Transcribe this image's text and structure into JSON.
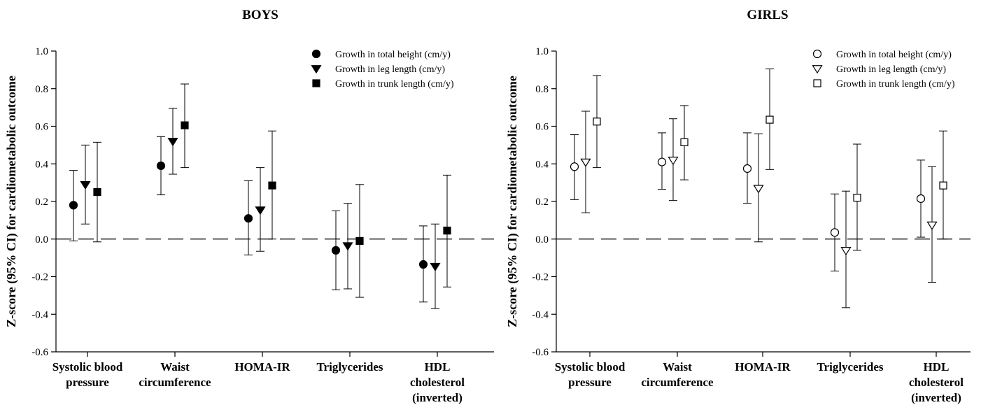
{
  "chart_data": [
    {
      "type": "scatter",
      "title": "BOYS",
      "ylabel": "Z-score (95% CI) for cardiometabolic outcome",
      "ylim": [
        -0.6,
        1.0
      ],
      "yticks": [
        "-0.6",
        "-0.4",
        "-0.2",
        "0.0",
        "0.2",
        "0.4",
        "0.6",
        "0.8",
        "1.0"
      ],
      "reference_line": 0.0,
      "legend_position": "top-right",
      "categories": [
        [
          "Systolic blood",
          "pressure"
        ],
        [
          "Waist",
          "circumference"
        ],
        [
          "HOMA-IR"
        ],
        [
          "Triglycerides"
        ],
        [
          "HDL",
          "cholesterol",
          "(inverted)"
        ]
      ],
      "series": [
        {
          "name": "Growth in total height (cm/y)",
          "marker": "circle",
          "filled": true,
          "values": [
            0.18,
            0.39,
            0.11,
            -0.06,
            -0.135
          ],
          "ci_low": [
            -0.01,
            0.235,
            -0.085,
            -0.27,
            -0.335
          ],
          "ci_high": [
            0.365,
            0.545,
            0.31,
            0.15,
            0.07
          ]
        },
        {
          "name": "Growth in leg length (cm/y)",
          "marker": "triangle-down",
          "filled": true,
          "values": [
            0.29,
            0.52,
            0.155,
            -0.035,
            -0.145
          ],
          "ci_low": [
            0.08,
            0.345,
            -0.065,
            -0.265,
            -0.37
          ],
          "ci_high": [
            0.5,
            0.695,
            0.38,
            0.19,
            0.08
          ]
        },
        {
          "name": "Growth in trunk length (cm/y)",
          "marker": "square",
          "filled": true,
          "values": [
            0.25,
            0.605,
            0.285,
            -0.01,
            0.045
          ],
          "ci_low": [
            -0.015,
            0.38,
            0.0,
            -0.31,
            -0.255
          ],
          "ci_high": [
            0.515,
            0.825,
            0.575,
            0.29,
            0.34
          ]
        }
      ]
    },
    {
      "type": "scatter",
      "title": "GIRLS",
      "ylabel": "Z-score (95% CI) for cardiometabolic outcome",
      "ylim": [
        -0.6,
        1.0
      ],
      "yticks": [
        "-0.6",
        "-0.4",
        "-0.2",
        "0.0",
        "0.2",
        "0.4",
        "0.6",
        "0.8",
        "1.0"
      ],
      "reference_line": 0.0,
      "legend_position": "top-right",
      "categories": [
        [
          "Systolic blood",
          "pressure"
        ],
        [
          "Waist",
          "circumference"
        ],
        [
          "HOMA-IR"
        ],
        [
          "Triglycerides"
        ],
        [
          "HDL",
          "cholesterol",
          "(inverted)"
        ]
      ],
      "series": [
        {
          "name": "Growth in total height (cm/y)",
          "marker": "circle",
          "filled": false,
          "values": [
            0.385,
            0.41,
            0.375,
            0.035,
            0.215
          ],
          "ci_low": [
            0.21,
            0.265,
            0.19,
            -0.17,
            0.01
          ],
          "ci_high": [
            0.555,
            0.565,
            0.565,
            0.24,
            0.42
          ]
        },
        {
          "name": "Growth in leg length (cm/y)",
          "marker": "triangle-down",
          "filled": false,
          "values": [
            0.41,
            0.42,
            0.27,
            -0.06,
            0.075
          ],
          "ci_low": [
            0.14,
            0.205,
            -0.015,
            -0.365,
            -0.23
          ],
          "ci_high": [
            0.68,
            0.64,
            0.56,
            0.255,
            0.385
          ]
        },
        {
          "name": "Growth in trunk length (cm/y)",
          "marker": "square",
          "filled": false,
          "values": [
            0.625,
            0.515,
            0.635,
            0.22,
            0.285
          ],
          "ci_low": [
            0.38,
            0.315,
            0.37,
            -0.06,
            0.0
          ],
          "ci_high": [
            0.87,
            0.71,
            0.905,
            0.505,
            0.575
          ]
        }
      ]
    }
  ]
}
